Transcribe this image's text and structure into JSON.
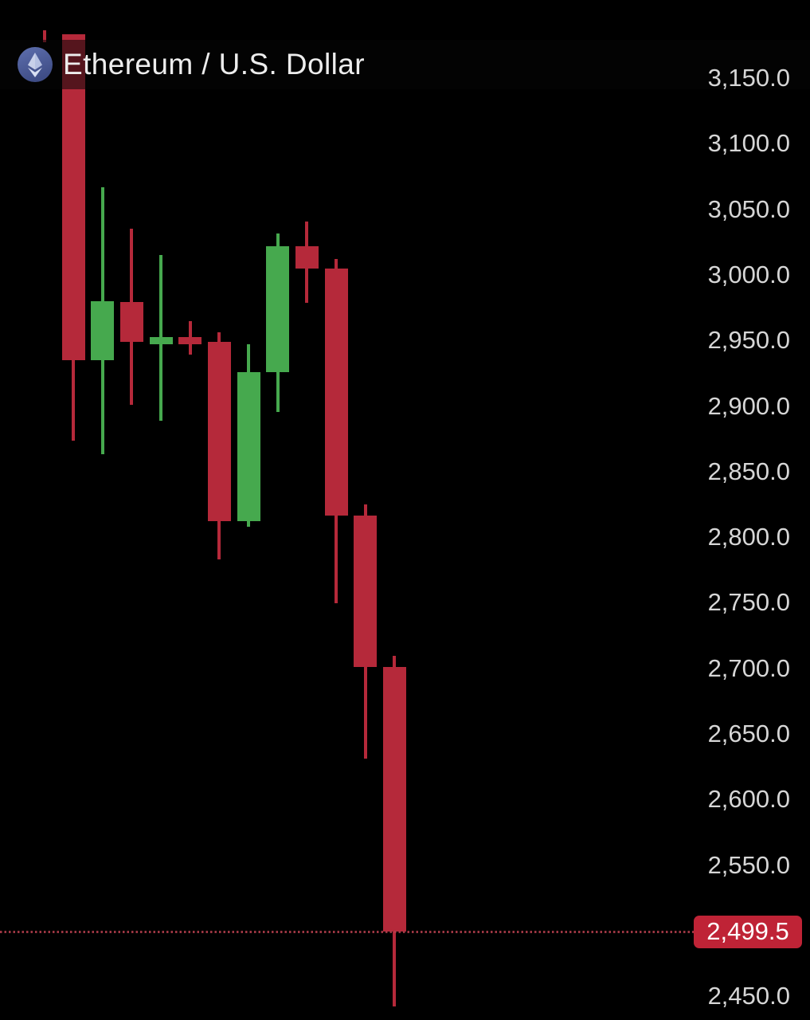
{
  "header": {
    "title": "Ethereum / U.S. Dollar",
    "icon": "ethereum-icon",
    "icon_colors": {
      "circle_top": "#5e6fae",
      "circle_bottom": "#3f4d86",
      "glyph_upper": "#c9d3f0",
      "glyph_lower": "#e2e8f9"
    }
  },
  "price_axis": {
    "side": "right",
    "label_color": "#d6d6d6",
    "ticks": [
      {
        "label": "3,150.0",
        "price": 3150.0
      },
      {
        "label": "3,100.0",
        "price": 3100.0
      },
      {
        "label": "3,050.0",
        "price": 3050.0
      },
      {
        "label": "3,000.0",
        "price": 3000.0
      },
      {
        "label": "2,950.0",
        "price": 2950.0
      },
      {
        "label": "2,900.0",
        "price": 2900.0
      },
      {
        "label": "2,850.0",
        "price": 2850.0
      },
      {
        "label": "2,800.0",
        "price": 2800.0
      },
      {
        "label": "2,750.0",
        "price": 2750.0
      },
      {
        "label": "2,700.0",
        "price": 2700.0
      },
      {
        "label": "2,650.0",
        "price": 2650.0
      },
      {
        "label": "2,600.0",
        "price": 2600.0
      },
      {
        "label": "2,550.0",
        "price": 2550.0
      },
      {
        "label": "2,450.0",
        "price": 2450.0
      }
    ]
  },
  "last_price": {
    "label": "2,499.5",
    "value": 2499.5,
    "badge_color": "#bf2336",
    "text_color": "#ffffff",
    "line_color": "#b8404e",
    "line_style": "dotted"
  },
  "chart_data": {
    "type": "candlestick",
    "title": "Ethereum / U.S. Dollar",
    "symbol": "ETH/USD",
    "up_color": "#46a94e",
    "down_color": "#b5293a",
    "ylim": [
      2430,
      3195
    ],
    "grid": false,
    "legend_position": "top-left",
    "candles": [
      {
        "partial": true,
        "high": 3186.5,
        "low": 3177.5
      },
      {
        "open": 3183.5,
        "high": 3183.5,
        "low": 2873.5,
        "close": 2935.0
      },
      {
        "open": 2935.0,
        "high": 3066.5,
        "low": 2863.0,
        "close": 2980.0
      },
      {
        "open": 2979.0,
        "high": 3035.0,
        "low": 2901.0,
        "close": 2949.0
      },
      {
        "open": 2947.0,
        "high": 3015.0,
        "low": 2888.5,
        "close": 2952.5
      },
      {
        "open": 2952.5,
        "high": 2965.0,
        "low": 2939.0,
        "close": 2947.0
      },
      {
        "open": 2949.0,
        "high": 2956.5,
        "low": 2783.0,
        "close": 2812.5
      },
      {
        "open": 2812.5,
        "high": 2947.0,
        "low": 2808.0,
        "close": 2926.0
      },
      {
        "open": 2926.0,
        "high": 3031.5,
        "low": 2895.5,
        "close": 3022.0
      },
      {
        "open": 3022.0,
        "high": 3040.5,
        "low": 2978.5,
        "close": 3005.0
      },
      {
        "open": 3005.0,
        "high": 3012.0,
        "low": 2749.5,
        "close": 2816.5
      },
      {
        "open": 2816.5,
        "high": 2825.0,
        "low": 2631.0,
        "close": 2701.0
      },
      {
        "open": 2701.0,
        "high": 2709.5,
        "low": 2442.0,
        "close": 2499.5
      }
    ]
  }
}
